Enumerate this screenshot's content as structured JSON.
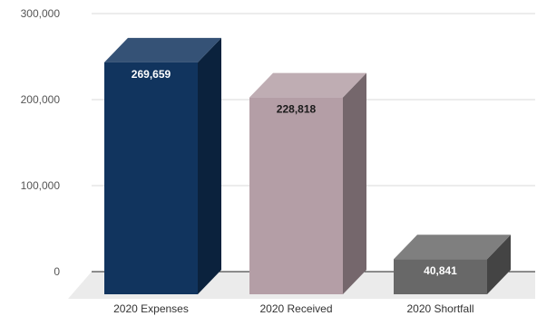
{
  "chart_data": {
    "type": "bar",
    "style": "3d-column",
    "categories": [
      "2020 Expenses",
      "2020 Received",
      "2020 Shortfall"
    ],
    "values": [
      269659,
      228818,
      40841
    ],
    "data_labels": [
      "269,659",
      "228,818",
      "40,841"
    ],
    "yticks": [
      0,
      100000,
      200000,
      300000
    ],
    "ytick_labels": [
      "0",
      "100,000",
      "200,000",
      "300,000"
    ],
    "ylim": [
      0,
      300000
    ],
    "title": "",
    "xlabel": "",
    "ylabel": "",
    "grid": true,
    "legend": "none",
    "bar_colors": [
      "#11345e",
      "#b49ea6",
      "#686868"
    ],
    "label_colors": [
      "#ffffff",
      "#1a1a1a",
      "#ffffff"
    ]
  }
}
